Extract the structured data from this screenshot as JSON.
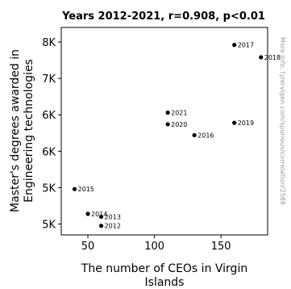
{
  "chart_data": {
    "type": "scatter",
    "title": "Years 2012-2021, r=0.908, p<0.01",
    "xlabel": "The number of CEOs in Virgin Islands",
    "ylabel": "Master's degrees awarded in Engineering technologies",
    "xlim": [
      30,
      185
    ],
    "ylim": [
      4850,
      7700
    ],
    "x_ticks": [
      50,
      100,
      150
    ],
    "x_tick_labels": [
      "50",
      "100",
      "150"
    ],
    "y_ticks": [
      5000,
      5500,
      6000,
      6500,
      7000,
      7500
    ],
    "y_tick_labels": [
      "5K",
      "5K",
      "6K",
      "6K",
      "7K",
      "8K"
    ],
    "grid": false,
    "points": [
      {
        "label": "2012",
        "x": 60,
        "y": 4975
      },
      {
        "label": "2013",
        "x": 60,
        "y": 5100
      },
      {
        "label": "2014",
        "x": 50,
        "y": 5140
      },
      {
        "label": "2015",
        "x": 40,
        "y": 5480
      },
      {
        "label": "2016",
        "x": 130,
        "y": 6220
      },
      {
        "label": "2017",
        "x": 160,
        "y": 7460
      },
      {
        "label": "2018",
        "x": 180,
        "y": 7290
      },
      {
        "label": "2019",
        "x": 160,
        "y": 6390
      },
      {
        "label": "2020",
        "x": 110,
        "y": 6370
      },
      {
        "label": "2021",
        "x": 110,
        "y": 6530
      }
    ],
    "watermark": "More info: tylervigen.com/spurious/correlation/2588",
    "colors": {
      "marker": "#000000",
      "axis": "#000000",
      "background": "#ffffff"
    }
  }
}
